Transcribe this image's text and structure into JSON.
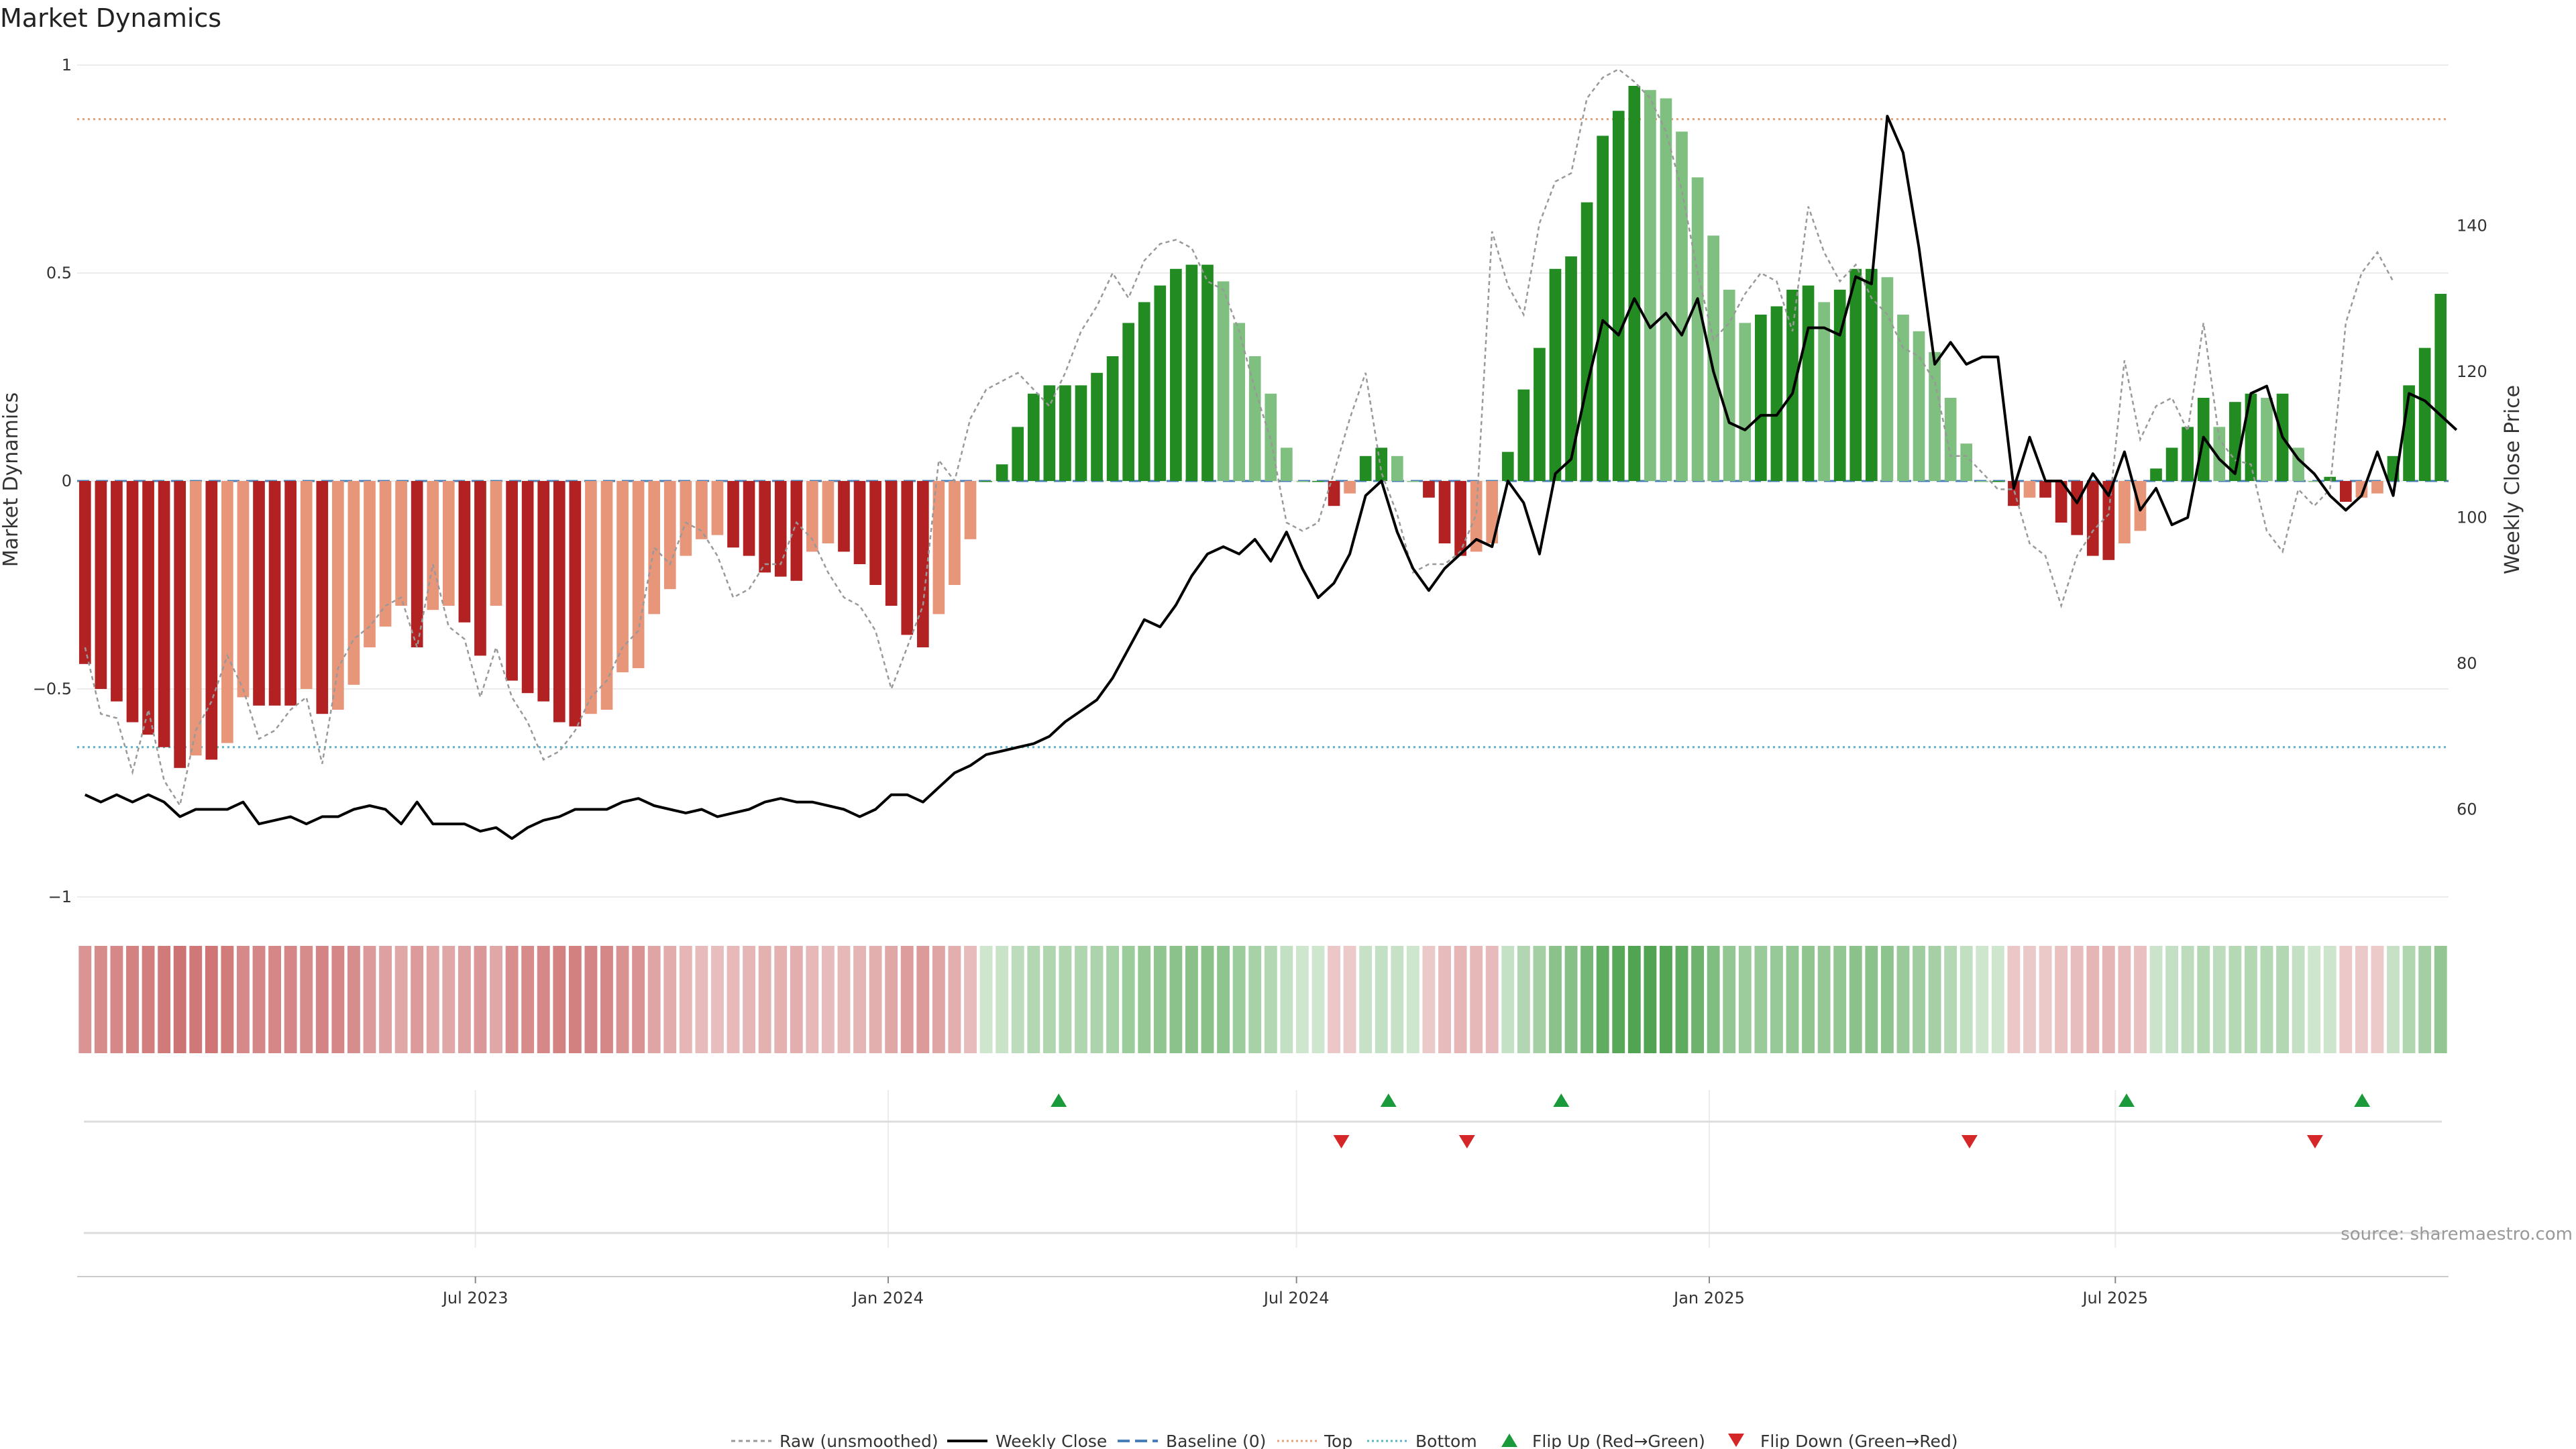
{
  "chart_data": {
    "type": "bar",
    "title": "Market Dynamics",
    "ylabel": "Market Dynamics",
    "y2label": "Weekly Close Price",
    "ylim": [
      -1,
      1
    ],
    "y2lim": [
      48,
      162
    ],
    "yticks": [
      -1,
      -0.5,
      0,
      0.5,
      1
    ],
    "ytick_labels": [
      "−1",
      "−0.5",
      "0",
      "0.5",
      "1"
    ],
    "y2ticks": [
      60,
      80,
      100,
      120,
      140
    ],
    "x_start": "2023-01-08",
    "x_end": "2025-11-23",
    "xticks": [
      {
        "date": "2023-07-01",
        "label": "Jul 2023"
      },
      {
        "date": "2024-01-01",
        "label": "Jan 2024"
      },
      {
        "date": "2024-07-01",
        "label": "Jul 2024"
      },
      {
        "date": "2025-01-01",
        "label": "Jan 2025"
      },
      {
        "date": "2025-07-01",
        "label": "Jul 2025"
      }
    ],
    "reference_lines": {
      "baseline": 0,
      "top": 0.87,
      "bottom": -0.64
    },
    "momentum": [
      -0.44,
      -0.5,
      -0.53,
      -0.58,
      -0.61,
      -0.64,
      -0.69,
      -0.66,
      -0.67,
      -0.63,
      -0.52,
      -0.54,
      -0.54,
      -0.54,
      -0.5,
      -0.56,
      -0.55,
      -0.49,
      -0.4,
      -0.35,
      -0.3,
      -0.4,
      -0.31,
      -0.3,
      -0.34,
      -0.42,
      -0.3,
      -0.48,
      -0.51,
      -0.53,
      -0.58,
      -0.59,
      -0.56,
      -0.55,
      -0.46,
      -0.45,
      -0.32,
      -0.26,
      -0.18,
      -0.14,
      -0.13,
      -0.16,
      -0.18,
      -0.22,
      -0.23,
      -0.24,
      -0.17,
      -0.15,
      -0.17,
      -0.2,
      -0.25,
      -0.3,
      -0.37,
      -0.4,
      -0.32,
      -0.25,
      -0.14,
      0.0,
      0.04,
      0.13,
      0.21,
      0.23,
      0.23,
      0.23,
      0.26,
      0.3,
      0.38,
      0.43,
      0.47,
      0.51,
      0.52,
      0.52,
      0.48,
      0.38,
      0.3,
      0.21,
      0.08,
      0.0,
      0.0,
      -0.06,
      -0.03,
      0.06,
      0.08,
      0.06,
      0.0,
      -0.04,
      -0.15,
      -0.18,
      -0.17,
      -0.15,
      0.07,
      0.22,
      0.32,
      0.51,
      0.54,
      0.67,
      0.83,
      0.89,
      0.95,
      0.94,
      0.92,
      0.84,
      0.73,
      0.59,
      0.46,
      0.38,
      0.4,
      0.42,
      0.46,
      0.47,
      0.43,
      0.46,
      0.51,
      0.51,
      0.49,
      0.4,
      0.36,
      0.31,
      0.2,
      0.09,
      0.0,
      0.0,
      -0.06,
      -0.04,
      -0.04,
      -0.1,
      -0.13,
      -0.18,
      -0.19,
      -0.15,
      -0.12,
      0.03,
      0.08,
      0.13,
      0.2,
      0.13,
      0.19,
      0.21,
      0.2,
      0.21,
      0.08,
      0.0,
      0.01,
      -0.05,
      -0.04,
      -0.03,
      0.06,
      0.23,
      0.32,
      0.45
    ],
    "raw": [
      -0.4,
      -0.56,
      -0.57,
      -0.7,
      -0.55,
      -0.72,
      -0.78,
      -0.6,
      -0.53,
      -0.42,
      -0.5,
      -0.62,
      -0.6,
      -0.55,
      -0.52,
      -0.68,
      -0.45,
      -0.38,
      -0.35,
      -0.3,
      -0.28,
      -0.4,
      -0.2,
      -0.35,
      -0.38,
      -0.52,
      -0.4,
      -0.52,
      -0.58,
      -0.67,
      -0.65,
      -0.6,
      -0.52,
      -0.48,
      -0.4,
      -0.36,
      -0.16,
      -0.2,
      -0.1,
      -0.12,
      -0.18,
      -0.28,
      -0.26,
      -0.2,
      -0.2,
      -0.1,
      -0.14,
      -0.22,
      -0.28,
      -0.3,
      -0.36,
      -0.5,
      -0.4,
      -0.3,
      0.05,
      0.0,
      0.15,
      0.22,
      0.24,
      0.26,
      0.22,
      0.18,
      0.26,
      0.36,
      0.42,
      0.5,
      0.44,
      0.53,
      0.57,
      0.58,
      0.56,
      0.48,
      0.46,
      0.36,
      0.22,
      0.1,
      -0.1,
      -0.12,
      -0.1,
      0.02,
      0.15,
      0.26,
      0.02,
      -0.08,
      -0.22,
      -0.2,
      -0.2,
      -0.17,
      -0.08,
      0.6,
      0.47,
      0.4,
      0.62,
      0.72,
      0.74,
      0.92,
      0.97,
      0.99,
      0.96,
      0.92,
      0.84,
      0.7,
      0.5,
      0.34,
      0.38,
      0.45,
      0.5,
      0.48,
      0.36,
      0.66,
      0.55,
      0.48,
      0.52,
      0.44,
      0.4,
      0.32,
      0.3,
      0.24,
      0.06,
      0.06,
      0.02,
      -0.02,
      -0.02,
      -0.15,
      -0.18,
      -0.3,
      -0.18,
      -0.12,
      -0.08,
      0.29,
      0.1,
      0.18,
      0.2,
      0.12,
      0.38,
      0.1,
      0.05,
      0.04,
      -0.12,
      -0.17,
      -0.02,
      -0.06,
      -0.02,
      0.38,
      0.5,
      0.55,
      0.48
    ],
    "close": [
      62,
      61,
      62,
      61,
      62,
      61,
      59,
      60,
      60,
      60,
      61,
      58,
      58.5,
      59,
      58,
      59,
      59,
      60,
      60.5,
      60,
      58,
      61,
      58,
      58,
      58,
      57,
      57.5,
      56,
      57.5,
      58.5,
      59,
      60,
      60,
      60,
      61,
      61.5,
      60.5,
      60,
      59.5,
      60,
      59,
      59.5,
      60,
      61,
      61.5,
      61,
      61,
      60.5,
      60,
      59,
      60,
      62,
      62,
      61,
      63,
      65,
      66,
      67.5,
      68,
      68.5,
      69,
      70,
      72,
      73.5,
      75,
      78,
      82,
      86,
      85,
      88,
      92,
      95,
      96,
      95,
      97,
      94,
      98,
      93,
      89,
      91,
      95,
      103,
      105,
      98,
      93,
      90,
      93,
      95,
      97,
      96,
      105,
      102,
      95,
      106,
      108,
      118,
      127,
      125,
      130,
      126,
      128,
      125,
      130,
      120,
      113,
      112,
      114,
      114,
      117,
      126,
      126,
      125,
      133,
      132,
      155,
      150,
      137,
      121,
      124,
      121,
      122,
      122,
      104,
      111,
      105,
      105,
      102,
      106,
      103,
      109,
      101,
      104,
      99,
      100,
      111,
      108,
      106,
      117,
      118,
      111,
      108,
      106,
      103,
      101,
      103,
      109,
      103,
      117,
      116,
      114,
      112
    ],
    "flips_up": [
      "2024-03-17",
      "2024-08-11",
      "2024-10-27",
      "2025-07-06",
      "2025-10-19"
    ],
    "flips_down": [
      "2024-07-21",
      "2024-09-15",
      "2025-04-27",
      "2025-09-28"
    ]
  },
  "legend": {
    "raw": "Raw (unsmoothed)",
    "close": "Weekly Close",
    "baseline": "Baseline (0)",
    "top": "Top",
    "bottom": "Bottom",
    "flip_up": "Flip Up (Red→Green)",
    "flip_down": "Flip Down (Green→Red)"
  },
  "source": "source: sharemaestro.com",
  "colors": {
    "strong_red": "#b22222",
    "light_red": "#e8967a",
    "strong_green": "#228b22",
    "light_green": "#7fbf7f",
    "raw": "#999999",
    "close": "#000000",
    "baseline": "#4a7fb5",
    "top": "#e5a07a",
    "bottom": "#5ab4c4",
    "flip_up": "#1a9a3a",
    "flip_down": "#d62728"
  }
}
